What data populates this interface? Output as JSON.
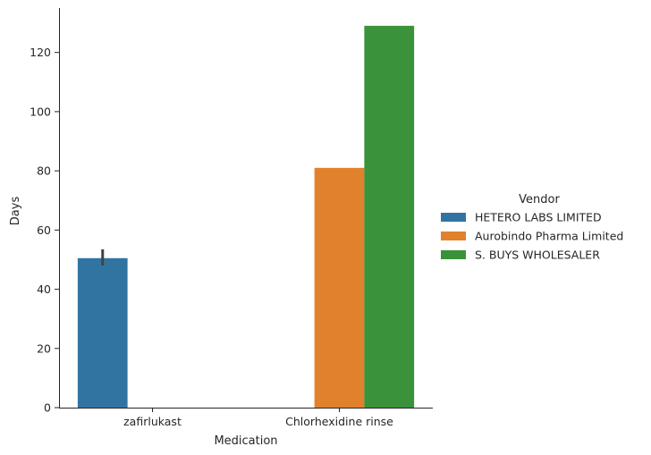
{
  "chart_data": {
    "type": "bar",
    "categories": [
      "zafirlukast",
      "Chlorhexidine rinse"
    ],
    "series": [
      {
        "name": "HETERO LABS LIMITED",
        "color": "#3274a1",
        "values": [
          50.5,
          null
        ],
        "error": [
          [
            48,
            53.5
          ],
          null
        ]
      },
      {
        "name": "Aurobindo Pharma Limited",
        "color": "#e1812c",
        "values": [
          null,
          81
        ],
        "error": [
          null,
          null
        ]
      },
      {
        "name": "S. BUYS WHOLESALER",
        "color": "#3a923a",
        "values": [
          null,
          129
        ],
        "error": [
          null,
          null
        ]
      }
    ],
    "xlabel": "Medication",
    "ylabel": "Days",
    "ylim": [
      0,
      135
    ],
    "yticks": [
      0,
      20,
      40,
      60,
      80,
      100,
      120
    ],
    "legend_title": "Vendor",
    "legend_position": "right",
    "grid": false
  }
}
